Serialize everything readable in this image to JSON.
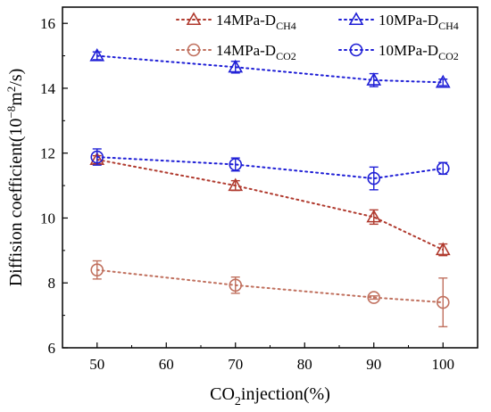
{
  "chart_data": {
    "type": "scatter",
    "xlabel": {
      "pre": "CO",
      "sub": "2",
      "post": "injection(%)"
    },
    "ylabel": {
      "pre": "Diffision coefficient(10",
      "sup1": "−8",
      "mid": "m",
      "sup2": "2",
      "post": "/s)"
    },
    "xlim": [
      45,
      105
    ],
    "ylim": [
      6,
      16.5
    ],
    "xticks": [
      50,
      60,
      70,
      80,
      90,
      100
    ],
    "yticks": [
      6,
      8,
      10,
      12,
      14,
      16
    ],
    "grid": false,
    "legend_position": "top",
    "x": [
      50,
      70,
      90,
      100
    ],
    "series": [
      {
        "name": "14MPa-DCH4",
        "name_pre": "14MPa-D",
        "name_sub": "CH4",
        "marker": "triangle",
        "color": "#b03a2e",
        "values": [
          11.8,
          11.0,
          10.03,
          9.02
        ],
        "errors": [
          0.12,
          0.15,
          0.22,
          0.18
        ]
      },
      {
        "name": "10MPa-DCH4",
        "name_pre": "10MPa-D",
        "name_sub": "CH4",
        "marker": "triangle",
        "color": "#1f1fd6",
        "values": [
          15.0,
          14.65,
          14.25,
          14.18
        ],
        "errors": [
          0.12,
          0.18,
          0.2,
          0.1
        ]
      },
      {
        "name": "14MPa-DCO2",
        "name_pre": "14MPa-D",
        "name_sub": "CO2",
        "marker": "circle",
        "color": "#c0705e",
        "values": [
          8.4,
          7.93,
          7.55,
          7.4
        ],
        "errors": [
          0.28,
          0.25,
          0.05,
          0.75
        ]
      },
      {
        "name": "10MPa-DCO2",
        "name_pre": "10MPa-D",
        "name_sub": "CO2",
        "marker": "circle",
        "color": "#1f1fd6",
        "values": [
          11.88,
          11.65,
          11.22,
          11.53
        ],
        "errors": [
          0.25,
          0.2,
          0.35,
          0.18
        ]
      }
    ]
  }
}
